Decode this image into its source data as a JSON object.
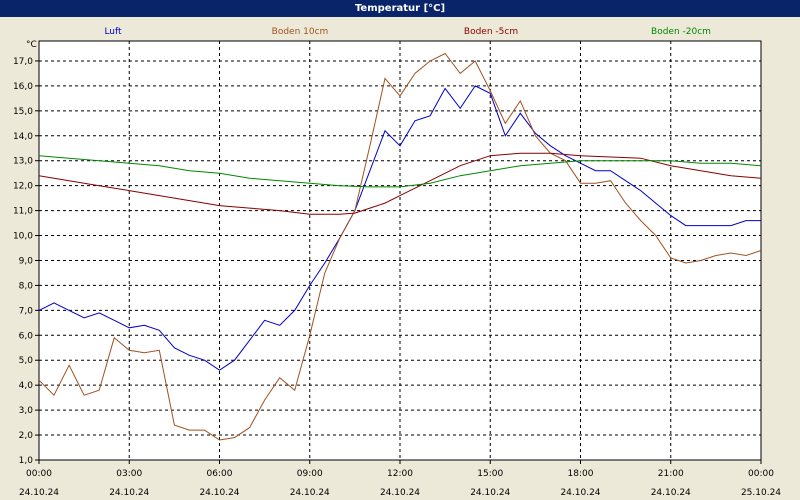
{
  "window": {
    "title": "Temperatur [°C]"
  },
  "chart_data": {
    "type": "line",
    "title": "Temperatur [°C]",
    "ylabel": "°C",
    "xlabel": "",
    "ylim": [
      1.0,
      17.8
    ],
    "xlim": [
      0,
      24
    ],
    "grid": true,
    "legend_placement": "top",
    "y_ticks": [
      "1,0",
      "2,0",
      "3,0",
      "4,0",
      "5,0",
      "6,0",
      "7,0",
      "8,0",
      "9,0",
      "10,0",
      "11,0",
      "12,0",
      "13,0",
      "14,0",
      "15,0",
      "16,0",
      "17,0"
    ],
    "x_ticks": [
      {
        "time": "00:00",
        "date": "24.10.24"
      },
      {
        "time": "03:00",
        "date": "24.10.24"
      },
      {
        "time": "06:00",
        "date": "24.10.24"
      },
      {
        "time": "09:00",
        "date": "24.10.24"
      },
      {
        "time": "12:00",
        "date": "24.10.24"
      },
      {
        "time": "15:00",
        "date": "24.10.24"
      },
      {
        "time": "18:00",
        "date": "24.10.24"
      },
      {
        "time": "21:00",
        "date": "24.10.24"
      },
      {
        "time": "00:00",
        "date": "25.10.24"
      }
    ],
    "series": [
      {
        "name": "Luft",
        "color": "#0000cc",
        "x": [
          0,
          0.5,
          1,
          1.5,
          2,
          2.5,
          3,
          3.5,
          4,
          4.5,
          5,
          5.5,
          6,
          6.5,
          7,
          7.5,
          8,
          8.5,
          9,
          9.5,
          10,
          10.5,
          11,
          11.5,
          12,
          12.5,
          13,
          13.5,
          14,
          14.5,
          15,
          15.5,
          16,
          16.5,
          17,
          17.5,
          18,
          18.5,
          19,
          19.5,
          20,
          20.5,
          21,
          21.5,
          22,
          22.5,
          23,
          23.5,
          24
        ],
        "values": [
          7.0,
          7.3,
          7.0,
          6.7,
          6.9,
          6.6,
          6.3,
          6.4,
          6.2,
          5.5,
          5.2,
          5.0,
          4.6,
          5.0,
          5.8,
          6.6,
          6.4,
          7.0,
          8.0,
          8.9,
          9.9,
          11.0,
          12.6,
          14.2,
          13.6,
          14.6,
          14.8,
          15.9,
          15.1,
          16.0,
          15.7,
          14.0,
          14.9,
          14.1,
          13.6,
          13.2,
          12.9,
          12.6,
          12.6,
          12.2,
          11.8,
          11.3,
          10.8,
          10.4,
          10.4,
          10.4,
          10.4,
          10.6,
          10.6
        ]
      },
      {
        "name": "Boden 10cm",
        "color": "#a0521e",
        "x": [
          0,
          0.5,
          1,
          1.5,
          2,
          2.5,
          3,
          3.5,
          4,
          4.5,
          5,
          5.5,
          6,
          6.5,
          7,
          7.5,
          8,
          8.5,
          9,
          9.5,
          10,
          10.5,
          11,
          11.5,
          12,
          12.5,
          13,
          13.5,
          14,
          14.5,
          15,
          15.5,
          16,
          16.5,
          17,
          17.5,
          18,
          18.5,
          19,
          19.5,
          20,
          20.5,
          21,
          21.5,
          22,
          22.5,
          23,
          23.5,
          24
        ],
        "values": [
          4.2,
          3.6,
          4.8,
          3.6,
          3.8,
          5.9,
          5.4,
          5.3,
          5.4,
          2.4,
          2.2,
          2.2,
          1.8,
          1.9,
          2.3,
          3.4,
          4.3,
          3.8,
          6.0,
          8.5,
          9.9,
          11.0,
          13.6,
          16.3,
          15.6,
          16.5,
          17.0,
          17.3,
          16.5,
          17.0,
          15.8,
          14.5,
          15.4,
          14.0,
          13.3,
          13.0,
          12.1,
          12.1,
          12.2,
          11.3,
          10.6,
          10.0,
          9.1,
          8.9,
          9.0,
          9.2,
          9.3,
          9.2,
          9.4
        ]
      },
      {
        "name": "Boden -5cm",
        "color": "#880000",
        "x": [
          0,
          1,
          2,
          3,
          4,
          5,
          6,
          7,
          8,
          9,
          10,
          10.5,
          11,
          11.5,
          12,
          13,
          14,
          15,
          16,
          17,
          18,
          19,
          20,
          21,
          22,
          23,
          24
        ],
        "values": [
          12.4,
          12.2,
          12.0,
          11.8,
          11.6,
          11.4,
          11.2,
          11.1,
          11.0,
          10.85,
          10.85,
          10.9,
          11.1,
          11.3,
          11.6,
          12.2,
          12.8,
          13.2,
          13.3,
          13.3,
          13.2,
          13.15,
          13.1,
          12.8,
          12.6,
          12.4,
          12.3
        ]
      },
      {
        "name": "Boden -20cm",
        "color": "#008800",
        "x": [
          0,
          1,
          2,
          3,
          4,
          5,
          6,
          7,
          8,
          9,
          10,
          11,
          12,
          13,
          14,
          15,
          16,
          17,
          18,
          19,
          20,
          21,
          22,
          23,
          24
        ],
        "values": [
          13.2,
          13.1,
          13.0,
          12.9,
          12.8,
          12.6,
          12.5,
          12.3,
          12.2,
          12.1,
          12.0,
          11.95,
          11.95,
          12.1,
          12.4,
          12.6,
          12.8,
          12.9,
          13.0,
          13.0,
          13.0,
          13.0,
          12.9,
          12.9,
          12.8
        ]
      }
    ]
  }
}
